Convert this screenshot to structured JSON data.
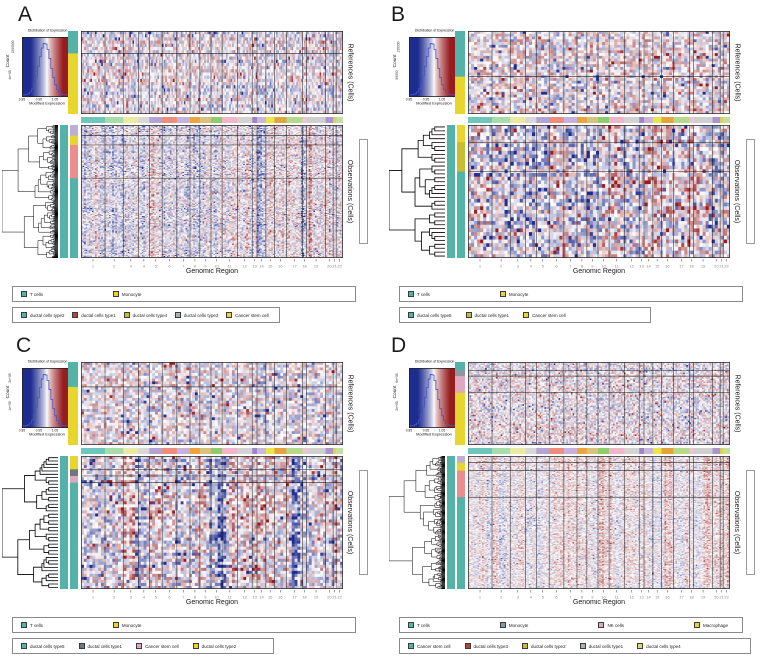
{
  "figure": {
    "background": "#ffffff"
  },
  "side_labels": {
    "references": "References (Cells)",
    "observations": "Observations (Cells)"
  },
  "axis": {
    "x_label": "Genomic Region",
    "x_regions": 22
  },
  "dist_legend": {
    "title": "Distribution of Expression",
    "xlabel": "Modified Expression",
    "ylabel": "Count",
    "xticks": [
      "0.85",
      "0.95",
      "1.05",
      "1.15"
    ]
  },
  "heat_palette": {
    "low": "#1e2c8f",
    "mid": "#ffffff",
    "high": "#971c1e"
  },
  "chr_widths": [
    9.5,
    7.2,
    6.0,
    4.3,
    5.1,
    5.8,
    5.2,
    3.9,
    4.4,
    4.4,
    6.0,
    5.9,
    1.9,
    3.5,
    3.4,
    4.7,
    6.4,
    1.6,
    7.5,
    3.0,
    1.2,
    2.7
  ],
  "chr_bar_colors": [
    "#6ec6bc",
    "#a8dcab",
    "#ece9a4",
    "#d8d8d8",
    "#b4a4d4",
    "#ef8d7c",
    "#c5b3dd",
    "#eca53e",
    "#d8c27c",
    "#8ecc6e",
    "#f2b6ca",
    "#d3d3d3",
    "#9e85c8",
    "#c9b5de",
    "#e9e64a",
    "#e5a33c",
    "#b6d98c",
    "#f0c3d5",
    "#cfcfcf",
    "#a995cf",
    "#dfd34e",
    "#c2e0a0"
  ],
  "panels": [
    {
      "letter": "A",
      "dist_yticks": [
        "1200000",
        "4e+05"
      ],
      "ref": {
        "rows": 26,
        "cols": 168,
        "seed": 11,
        "bias": 0.2,
        "noise": 0.95,
        "speckle": 0.08,
        "annot": [
          [
            "#53b3a9",
            0.27
          ],
          [
            "#e8d52e",
            0.73
          ]
        ]
      },
      "obs": {
        "rows": 130,
        "cols": 168,
        "seed": 12,
        "leaves": 260,
        "dendro_lw": 0.5,
        "bias": 0.85,
        "noise": 0.8,
        "speckle": 0.06,
        "skew": 0,
        "annot1": "#53b3a9",
        "annot2": [
          [
            "#bcaed5",
            0.08
          ],
          [
            "#e8d52e",
            0.07
          ],
          [
            "#ec8e8e",
            0.25
          ],
          [
            "#53b3a9",
            0.6
          ]
        ]
      },
      "legend1": [
        {
          "label": "T cells",
          "color": "#53b3a9"
        },
        {
          "label": "Monocyte",
          "color": "#e8d52e"
        }
      ],
      "legend2": [
        {
          "label": "ductal cells type2",
          "color": "#53b3a9"
        },
        {
          "label": "ductal cells type1",
          "color": "#b5443f"
        },
        {
          "label": "ductal cells type4",
          "color": "#c9bd2f"
        },
        {
          "label": "ductal cells type3",
          "color": "#aab0b5"
        },
        {
          "label": "Cancer stem cell",
          "color": "#e8d52e"
        }
      ],
      "legend2_width": 268
    },
    {
      "letter": "B",
      "dist_yticks": [
        "150000",
        "50000"
      ],
      "ref": {
        "rows": 30,
        "cols": 86,
        "seed": 21,
        "bias": 0.2,
        "noise": 1.0,
        "speckle": 0.1,
        "annot": [
          [
            "#53b3a9",
            0.55
          ],
          [
            "#e8d52e",
            0.45
          ]
        ]
      },
      "obs": {
        "rows": 36,
        "cols": 86,
        "seed": 22,
        "leaves": 34,
        "dendro_lw": 0.8,
        "bias": 0.7,
        "noise": 1.15,
        "speckle": 0.12,
        "skew": 0,
        "annot1": "#53b3a9",
        "annot2": [
          [
            "#e8d52e",
            0.13
          ],
          [
            "#c9bd2f",
            0.22
          ],
          [
            "#53b3a9",
            0.65
          ]
        ]
      },
      "legend1": [
        {
          "label": "T cells",
          "color": "#53b3a9"
        },
        {
          "label": "Monocyte",
          "color": "#e8d52e"
        }
      ],
      "legend2": [
        {
          "label": "ductal cells type5",
          "color": "#53b3a9"
        },
        {
          "label": "ductal cells type1",
          "color": "#c9bd2f"
        },
        {
          "label": "Cancer stem cell",
          "color": "#e8d52e"
        }
      ],
      "legend2_width": 252
    },
    {
      "letter": "C",
      "dist_yticks": [
        "2e+05",
        "1e+05"
      ],
      "ref": {
        "rows": 30,
        "cols": 92,
        "seed": 31,
        "bias": 0.2,
        "noise": 0.95,
        "speckle": 0.09,
        "annot": [
          [
            "#53b3a9",
            0.3
          ],
          [
            "#e8d52e",
            0.7
          ]
        ]
      },
      "obs": {
        "rows": 44,
        "cols": 92,
        "seed": 32,
        "leaves": 40,
        "dendro_lw": 0.8,
        "bias": 1.0,
        "noise": 1.05,
        "speckle": 0.1,
        "skew": 0,
        "annot1": "#53b3a9",
        "annot2": [
          [
            "#e8d52e",
            0.1
          ],
          [
            "#6f777d",
            0.05
          ],
          [
            "#e0a7c0",
            0.05
          ],
          [
            "#53b3a9",
            0.8
          ]
        ]
      },
      "legend1": [
        {
          "label": "T cells",
          "color": "#53b3a9"
        },
        {
          "label": "Monocyte",
          "color": "#e8d52e"
        }
      ],
      "legend2": [
        {
          "label": "ductal cells type5",
          "color": "#53b3a9"
        },
        {
          "label": "ductal cells type1",
          "color": "#6f777d"
        },
        {
          "label": "Cancer stem cell",
          "color": "#e0a7c0"
        },
        {
          "label": "ductal cells type2",
          "color": "#e8d52e"
        }
      ],
      "legend2_width": 262
    },
    {
      "letter": "D",
      "dist_yticks": [
        "6e+05",
        "2e+05"
      ],
      "ref": {
        "rows": 55,
        "cols": 168,
        "seed": 41,
        "bias": 0.2,
        "noise": 0.85,
        "speckle": 0.07,
        "annot": [
          [
            "#53b3a9",
            0.1
          ],
          [
            "#8e979e",
            0.07
          ],
          [
            "#e0a7c0",
            0.2
          ],
          [
            "#e8d52e",
            0.63
          ]
        ]
      },
      "obs": {
        "rows": 160,
        "cols": 168,
        "seed": 42,
        "leaves": 280,
        "dendro_lw": 0.5,
        "bias": 0.45,
        "noise": 0.6,
        "speckle": 0.05,
        "skew": 0.1,
        "annot1": "#53b3a9",
        "annot2": [
          [
            "#bcaed5",
            0.05
          ],
          [
            "#e8d52e",
            0.06
          ],
          [
            "#ec8e8e",
            0.2
          ],
          [
            "#53b3a9",
            0.69
          ]
        ]
      },
      "legend1": [
        {
          "label": "T cells",
          "color": "#53b3a9"
        },
        {
          "label": "Monocyte",
          "color": "#8e979e"
        },
        {
          "label": "NK cells",
          "color": "#e0a7c0"
        },
        {
          "label": "Macrophage",
          "color": "#e8d52e"
        }
      ],
      "legend2": [
        {
          "label": "Cancer stem cell",
          "color": "#53b3a9"
        },
        {
          "label": "ductal cells type3",
          "color": "#b5443f"
        },
        {
          "label": "ductal cells type2",
          "color": "#c9bd2f"
        },
        {
          "label": "ductal cells type1",
          "color": "#aab0b5"
        },
        {
          "label": "ductal cells type4",
          "color": "#ded974"
        }
      ],
      "legend2_width": 352
    }
  ],
  "chart_data": [
    {
      "panel": "A",
      "type": "heatmap",
      "xlabel": "Genomic Region",
      "x_regions": 22,
      "subplots": [
        {
          "name": "References (Cells)",
          "row_groups": [
            "T cells",
            "Monocyte"
          ]
        },
        {
          "name": "Observations (Cells)",
          "has_dendrogram": true,
          "row_groups": [
            "ductal cells type2",
            "ductal cells type1",
            "ductal cells type4",
            "ductal cells type3",
            "Cancer stem cell"
          ]
        }
      ],
      "colorbar": {
        "title": "Distribution of Expression",
        "xlabel": "Modified Expression",
        "ylabel": "Count",
        "ticks": [
          0.85,
          0.95,
          1.05,
          1.15
        ],
        "center": 1.0,
        "palette": "blue-white-red"
      },
      "values_note": "dense per-cell CNV-like expression texture; individual cell values not resolvable at screenshot resolution"
    },
    {
      "panel": "B",
      "type": "heatmap",
      "xlabel": "Genomic Region",
      "x_regions": 22,
      "subplots": [
        {
          "name": "References (Cells)",
          "row_groups": [
            "T cells",
            "Monocyte"
          ]
        },
        {
          "name": "Observations (Cells)",
          "has_dendrogram": true,
          "row_groups": [
            "ductal cells type5",
            "ductal cells type1",
            "Cancer stem cell"
          ]
        }
      ],
      "colorbar": {
        "title": "Distribution of Expression",
        "xlabel": "Modified Expression",
        "ylabel": "Count",
        "ticks": [
          0.85,
          0.95,
          1.05,
          1.15
        ],
        "center": 1.0,
        "palette": "blue-white-red"
      },
      "values_note": "dense per-cell CNV-like expression texture; individual cell values not resolvable at screenshot resolution"
    },
    {
      "panel": "C",
      "type": "heatmap",
      "xlabel": "Genomic Region",
      "x_regions": 22,
      "subplots": [
        {
          "name": "References (Cells)",
          "row_groups": [
            "T cells",
            "Monocyte"
          ]
        },
        {
          "name": "Observations (Cells)",
          "has_dendrogram": true,
          "row_groups": [
            "ductal cells type5",
            "ductal cells type1",
            "Cancer stem cell",
            "ductal cells type2"
          ]
        }
      ],
      "colorbar": {
        "title": "Distribution of Expression",
        "xlabel": "Modified Expression",
        "ylabel": "Count",
        "ticks": [
          0.85,
          0.95,
          1.05,
          1.15
        ],
        "center": 1.0,
        "palette": "blue-white-red"
      },
      "values_note": "dense per-cell CNV-like expression texture; individual cell values not resolvable at screenshot resolution"
    },
    {
      "panel": "D",
      "type": "heatmap",
      "xlabel": "Genomic Region",
      "x_regions": 22,
      "subplots": [
        {
          "name": "References (Cells)",
          "row_groups": [
            "T cells",
            "Monocyte",
            "NK cells",
            "Macrophage"
          ]
        },
        {
          "name": "Observations (Cells)",
          "has_dendrogram": true,
          "row_groups": [
            "Cancer stem cell",
            "ductal cells type3",
            "ductal cells type2",
            "ductal cells type1",
            "ductal cells type4"
          ]
        }
      ],
      "colorbar": {
        "title": "Distribution of Expression",
        "xlabel": "Modified Expression",
        "ylabel": "Count",
        "ticks": [
          0.85,
          0.95,
          1.05,
          1.15
        ],
        "center": 1.0,
        "palette": "blue-white-red"
      },
      "values_note": "dense per-cell CNV-like expression texture; individual cell values not resolvable at screenshot resolution"
    }
  ]
}
